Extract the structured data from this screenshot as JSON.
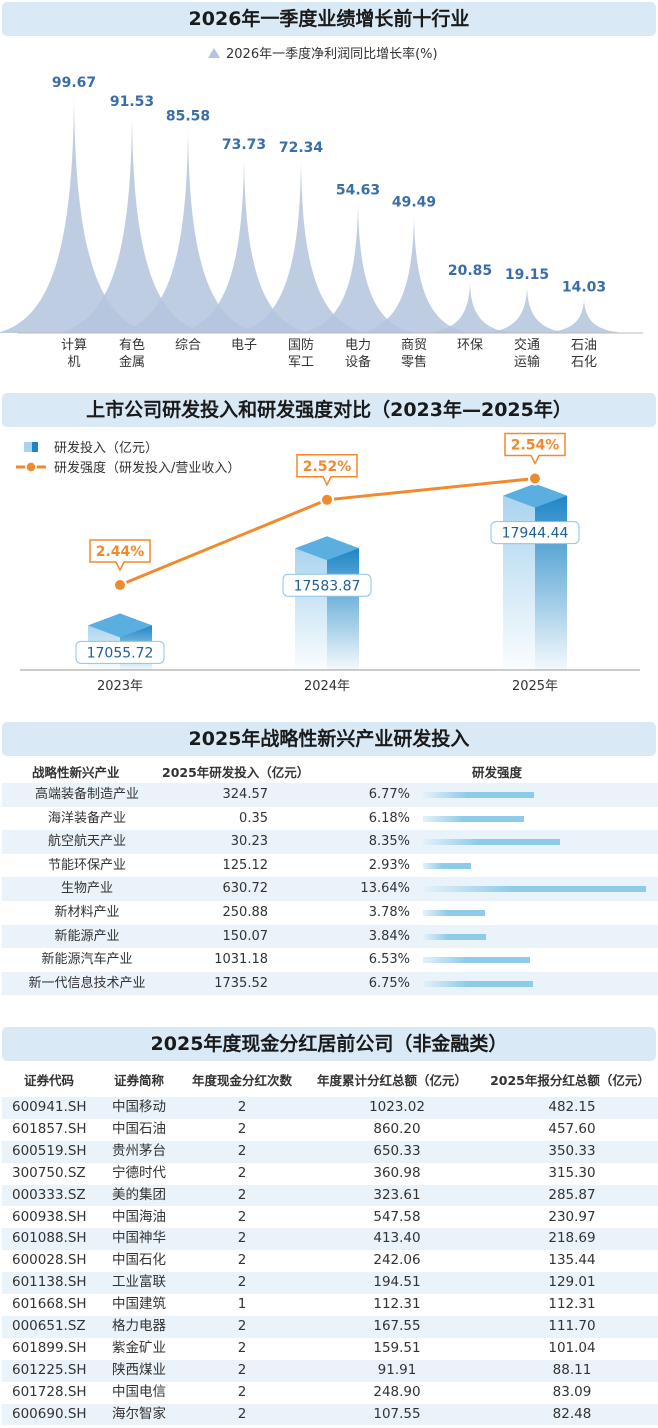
{
  "section1": {
    "title": "2026年一季度业绩增长前十行业"
  },
  "section2": {
    "title": "上市公司研发投入和研发强度对比（2023年—2025年）"
  },
  "section3": {
    "title": "2025年战略性新兴产业研发投入",
    "headers": [
      "战略性新兴产业",
      "2025年研发投入（亿元）",
      "研发强度"
    ],
    "rows": [
      [
        "高端装备制造产业",
        "324.57",
        "6.77%",
        6.77
      ],
      [
        "海洋装备产业",
        "0.35",
        "6.18%",
        6.18
      ],
      [
        "航空航天产业",
        "30.23",
        "8.35%",
        8.35
      ],
      [
        "节能环保产业",
        "125.12",
        "2.93%",
        2.93
      ],
      [
        "生物产业",
        "630.72",
        "13.64%",
        13.64
      ],
      [
        "新材料产业",
        "250.88",
        "3.78%",
        3.78
      ],
      [
        "新能源产业",
        "150.07",
        "3.84%",
        3.84
      ],
      [
        "新能源汽车产业",
        "1031.18",
        "6.53%",
        6.53
      ],
      [
        "新一代信息技术产业",
        "1735.52",
        "6.75%",
        6.75
      ]
    ]
  },
  "section4": {
    "title": "2025年度现金分红居前公司（非金融类）",
    "headers": [
      "证券代码",
      "证券简称",
      "年度现金分红次数",
      "年度累计分红总额（亿元）",
      "2025年报分红总额（亿元）"
    ],
    "rows": [
      [
        "600941.SH",
        "中国移动",
        "2",
        "1023.02",
        "482.15"
      ],
      [
        "601857.SH",
        "中国石油",
        "2",
        "860.20",
        "457.60"
      ],
      [
        "600519.SH",
        "贵州茅台",
        "2",
        "650.33",
        "350.33"
      ],
      [
        "300750.SZ",
        "宁德时代",
        "2",
        "360.98",
        "315.30"
      ],
      [
        "000333.SZ",
        "美的集团",
        "2",
        "323.61",
        "285.87"
      ],
      [
        "600938.SH",
        "中国海油",
        "2",
        "547.58",
        "230.97"
      ],
      [
        "601088.SH",
        "中国神华",
        "2",
        "413.40",
        "218.69"
      ],
      [
        "600028.SH",
        "中国石化",
        "2",
        "242.06",
        "135.44"
      ],
      [
        "601138.SH",
        "工业富联",
        "2",
        "194.51",
        "129.01"
      ],
      [
        "601668.SH",
        "中国建筑",
        "1",
        "112.31",
        "112.31"
      ],
      [
        "000651.SZ",
        "格力电器",
        "2",
        "167.55",
        "111.70"
      ],
      [
        "601899.SH",
        "紫金矿业",
        "2",
        "159.51",
        "101.04"
      ],
      [
        "601225.SH",
        "陕西煤业",
        "2",
        "91.91",
        "88.11"
      ],
      [
        "601728.SH",
        "中国电信",
        "2",
        "248.90",
        "83.09"
      ],
      [
        "600690.SH",
        "海尔智家",
        "2",
        "107.55",
        "82.48"
      ]
    ]
  },
  "colors": {
    "peak": "#b4c4de",
    "value": "#3a6ea8",
    "line": "#f08a2c",
    "barLight": "#a9d4ef",
    "barDark": "#1f86c6",
    "banner": "#d9eaf6"
  },
  "chart_data": [
    {
      "type": "area",
      "title": "2026年一季度业绩增长前十行业",
      "legend": "2026年一季度净利润同比增长率(%)",
      "legend_position": "top",
      "categories": [
        "计算机",
        "有色金属",
        "综合",
        "电子",
        "国防军工",
        "电力设备",
        "商贸零售",
        "环保",
        "交通运输",
        "石油石化"
      ],
      "category_lines": [
        [
          "计算",
          "机"
        ],
        [
          "有色",
          "金属"
        ],
        [
          "综合",
          ""
        ],
        [
          "电子",
          ""
        ],
        [
          "国防",
          "军工"
        ],
        [
          "电力",
          "设备"
        ],
        [
          "商贸",
          "零售"
        ],
        [
          "环保",
          ""
        ],
        [
          "交通",
          "运输"
        ],
        [
          "石油",
          "石化"
        ]
      ],
      "values": [
        99.67,
        91.53,
        85.58,
        73.73,
        72.34,
        54.63,
        49.49,
        20.85,
        19.15,
        14.03
      ],
      "labels": [
        "99.67",
        "91.53",
        "85.58",
        "73.73",
        "72.34",
        "54.63",
        "49.49",
        "20.85",
        "19.15",
        "14.03"
      ]
    },
    {
      "type": "bar",
      "title": "上市公司研发投入和研发强度对比（2023年—2025年）",
      "categories": [
        "2023年",
        "2024年",
        "2025年"
      ],
      "series": [
        {
          "name": "研发投入（亿元）",
          "type": "bar",
          "values": [
            17055.72,
            17583.87,
            17944.44
          ],
          "labels": [
            "17055.72",
            "17583.87",
            "17944.44"
          ]
        },
        {
          "name": "研发强度（研发投入/营业收入）",
          "type": "line",
          "values": [
            2.44,
            2.52,
            2.54
          ],
          "labels": [
            "2.44%",
            "2.52%",
            "2.54%"
          ]
        }
      ],
      "legend_position": "top-left"
    }
  ]
}
